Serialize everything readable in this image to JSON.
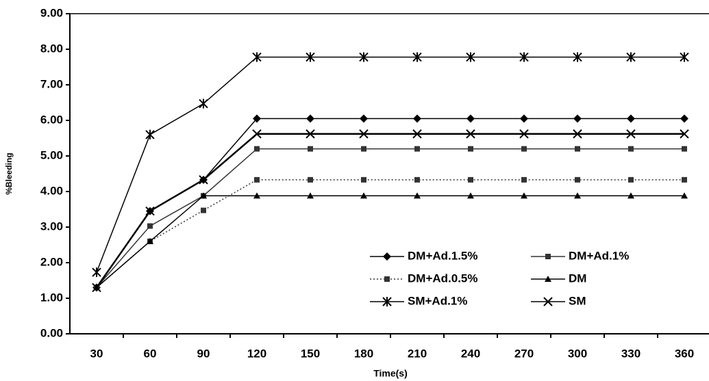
{
  "chart_data": {
    "type": "line",
    "xlabel": "Time(s)",
    "ylabel": "%Bleeding",
    "categories": [
      "30",
      "60",
      "90",
      "120",
      "150",
      "180",
      "210",
      "240",
      "270",
      "300",
      "330",
      "360"
    ],
    "series": [
      {
        "name": "DM+Ad.1.5%",
        "color": "#000000",
        "marker": "diamond",
        "dash": "solid",
        "values": [
          1.3,
          3.45,
          4.33,
          6.05,
          6.05,
          6.05,
          6.05,
          6.05,
          6.05,
          6.05,
          6.05,
          6.05
        ]
      },
      {
        "name": "DM+Ad.1%",
        "color": "#333333",
        "marker": "square",
        "dash": "solid",
        "values": [
          1.3,
          3.03,
          3.88,
          5.2,
          5.2,
          5.2,
          5.2,
          5.2,
          5.2,
          5.2,
          5.2,
          5.2
        ]
      },
      {
        "name": "DM+Ad.0.5%",
        "color": "#333333",
        "marker": "square",
        "dash": "dotted",
        "values": [
          1.3,
          2.6,
          3.47,
          4.33,
          4.33,
          4.33,
          4.33,
          4.33,
          4.33,
          4.33,
          4.33,
          4.33
        ]
      },
      {
        "name": "DM",
        "color": "#000000",
        "marker": "triangle",
        "dash": "solid",
        "values": [
          1.3,
          2.6,
          3.88,
          3.88,
          3.88,
          3.88,
          3.88,
          3.88,
          3.88,
          3.88,
          3.88,
          3.88
        ]
      },
      {
        "name": "SM+Ad.1%",
        "color": "#000000",
        "marker": "star",
        "dash": "solid",
        "values": [
          1.73,
          5.6,
          6.47,
          7.78,
          7.78,
          7.78,
          7.78,
          7.78,
          7.78,
          7.78,
          7.78,
          7.78
        ]
      },
      {
        "name": "SM",
        "color": "#000000",
        "marker": "cross",
        "dash": "solid",
        "values": [
          1.3,
          3.45,
          4.33,
          5.62,
          5.62,
          5.62,
          5.62,
          5.62,
          5.62,
          5.62,
          5.62,
          5.62
        ]
      }
    ],
    "ylim": [
      0,
      9
    ],
    "yticks": [
      {
        "value": 0,
        "label": "0.00"
      },
      {
        "value": 1,
        "label": "1.00"
      },
      {
        "value": 2,
        "label": "2.00"
      },
      {
        "value": 3,
        "label": "3.00"
      },
      {
        "value": 4,
        "label": "4.00"
      },
      {
        "value": 5,
        "label": "5.00"
      },
      {
        "value": 6,
        "label": "6.00"
      },
      {
        "value": 7,
        "label": "7.00"
      },
      {
        "value": 8,
        "label": "8.00"
      },
      {
        "value": 9,
        "label": "9.00"
      }
    ],
    "grid": false
  }
}
